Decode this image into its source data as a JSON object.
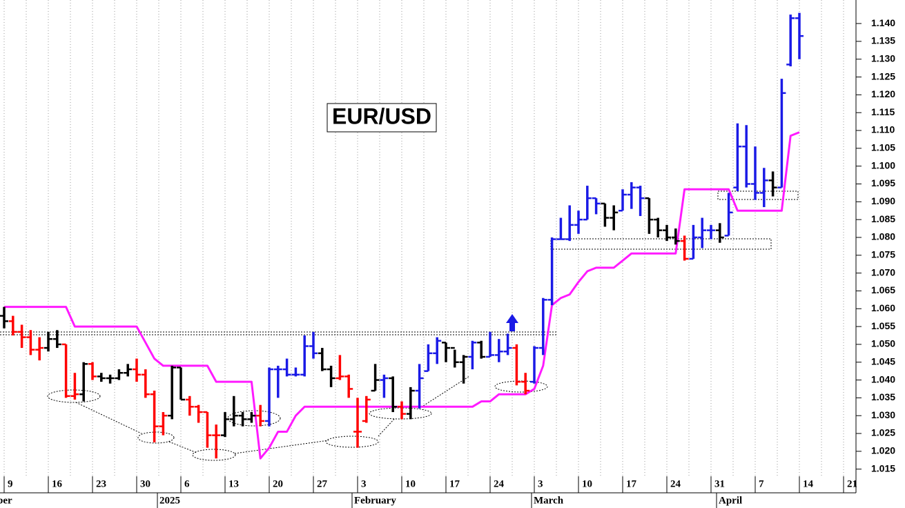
{
  "chart_data": {
    "type": "ohlc",
    "title": "EUR/USD",
    "categories": [
      "9",
      null,
      null,
      null,
      null,
      "16",
      null,
      null,
      null,
      null,
      "23",
      null,
      null,
      null,
      null,
      "30",
      null,
      null,
      null,
      null,
      "6",
      null,
      null,
      null,
      null,
      "13",
      null,
      null,
      null,
      null,
      "20",
      null,
      null,
      null,
      null,
      "27",
      null,
      null,
      null,
      null,
      "3",
      null,
      null,
      null,
      null,
      "10",
      null,
      null,
      null,
      null,
      "17",
      null,
      null,
      null,
      null,
      "24",
      null,
      null,
      null,
      null,
      "3",
      null,
      null,
      null,
      null,
      "10",
      null,
      null,
      null,
      null,
      "17",
      null,
      null,
      null,
      null,
      "24",
      null,
      null,
      null,
      null,
      "31",
      null,
      null,
      null,
      null,
      "7",
      null,
      null,
      null,
      null,
      "14",
      null,
      null,
      null,
      null,
      "21",
      null
    ],
    "months": [
      "ber",
      "2025",
      "February",
      "March",
      "April"
    ],
    "open": [
      1.058,
      1.0565,
      1.0535,
      1.052,
      1.0485,
      1.049,
      1.0515,
      1.05,
      1.0355,
      1.036,
      1.0445,
      1.041,
      1.0405,
      1.0405,
      1.042,
      1.043,
      1.0415,
      1.036,
      1.027,
      1.03,
      1.0435,
      1.0345,
      1.0325,
      1.031,
      1.0245,
      1.0245,
      1.029,
      1.03,
      1.029,
      1.03,
      1.0285,
      1.043,
      1.043,
      1.0415,
      1.0415,
      1.0495,
      1.0475,
      1.043,
      1.0405,
      1.041,
      1.0255,
      1.0285,
      1.037,
      1.04,
      1.0405,
      1.0325,
      1.0305,
      1.037,
      1.0425,
      1.0475,
      1.0505,
      1.049,
      1.045,
      1.0465,
      1.0505,
      1.0465,
      1.047,
      1.048,
      1.049,
      1.0395,
      1.0395,
      1.049,
      1.0625,
      1.0795,
      1.0795,
      1.0835,
      1.085,
      1.091,
      1.0895,
      1.0855,
      1.0875,
      1.092,
      1.094,
      1.091,
      1.085,
      1.082,
      1.08,
      1.079,
      1.074,
      1.08,
      1.082,
      1.082,
      1.0805,
      1.094,
      1.1055,
      1.095,
      1.0925,
      1.096,
      1.094,
      1.1285,
      1.1415,
      null,
      null,
      null,
      null,
      null,
      null
    ],
    "high": [
      1.0605,
      1.058,
      1.0555,
      1.054,
      1.052,
      1.0535,
      1.054,
      1.05,
      1.042,
      1.045,
      1.045,
      1.042,
      1.0415,
      1.043,
      1.0445,
      1.046,
      1.043,
      1.037,
      1.031,
      1.044,
      1.0435,
      1.0355,
      1.033,
      1.031,
      1.0275,
      1.031,
      1.0355,
      1.031,
      1.031,
      1.033,
      1.0435,
      1.044,
      1.046,
      1.0435,
      1.0525,
      1.0535,
      1.049,
      1.044,
      1.047,
      1.0415,
      1.035,
      1.0355,
      1.0445,
      1.0415,
      1.041,
      1.034,
      1.038,
      1.0445,
      1.05,
      1.052,
      1.0505,
      1.0485,
      1.047,
      1.051,
      1.051,
      1.0535,
      1.0515,
      1.053,
      1.05,
      1.042,
      1.0495,
      1.063,
      1.08,
      1.0855,
      1.089,
      1.0875,
      1.0945,
      1.091,
      1.0895,
      1.089,
      1.0935,
      1.0955,
      1.0945,
      1.091,
      1.0855,
      1.0835,
      1.0825,
      1.0805,
      1.0835,
      1.0855,
      1.0835,
      1.084,
      1.0925,
      1.112,
      1.1115,
      1.1055,
      1.0995,
      1.0985,
      1.1245,
      1.1425,
      1.143,
      null,
      null,
      null,
      null,
      null,
      null
    ],
    "low": [
      1.0545,
      1.0525,
      1.049,
      1.047,
      1.0455,
      1.048,
      1.049,
      1.035,
      1.0345,
      1.034,
      1.04,
      1.0395,
      1.039,
      1.04,
      1.041,
      1.0395,
      1.035,
      1.0225,
      1.0245,
      1.029,
      1.0345,
      1.03,
      1.028,
      1.021,
      1.018,
      1.024,
      1.027,
      1.027,
      1.028,
      1.027,
      1.027,
      1.035,
      1.041,
      1.041,
      1.041,
      1.046,
      1.0425,
      1.038,
      1.04,
      1.035,
      1.021,
      1.028,
      1.037,
      1.035,
      1.031,
      1.029,
      1.029,
      1.032,
      1.0425,
      1.0445,
      1.045,
      1.0435,
      1.039,
      1.043,
      1.046,
      1.0465,
      1.045,
      1.047,
      1.0385,
      1.036,
      1.039,
      1.047,
      1.061,
      1.0795,
      1.079,
      1.081,
      1.085,
      1.0865,
      1.083,
      1.082,
      1.0875,
      1.088,
      1.086,
      1.081,
      1.08,
      1.079,
      1.078,
      1.0735,
      1.074,
      1.077,
      1.0795,
      1.0785,
      1.0805,
      1.093,
      1.094,
      1.0905,
      1.0885,
      1.0915,
      1.094,
      1.128,
      1.13,
      null,
      null,
      null,
      null,
      null,
      null
    ],
    "close": [
      1.0565,
      1.0535,
      1.052,
      1.0485,
      1.049,
      1.0515,
      1.05,
      1.0355,
      1.036,
      1.0445,
      1.041,
      1.0405,
      1.0405,
      1.042,
      1.043,
      1.0415,
      1.036,
      1.027,
      1.03,
      1.0435,
      1.0345,
      1.0325,
      1.031,
      1.0245,
      1.0245,
      1.029,
      1.03,
      1.029,
      1.03,
      1.0285,
      1.043,
      1.043,
      1.0415,
      1.0415,
      1.0495,
      1.0475,
      1.043,
      1.0405,
      1.041,
      1.0375,
      1.0255,
      1.0345,
      1.04,
      1.0405,
      1.0325,
      1.0305,
      1.037,
      1.0405,
      1.0475,
      1.051,
      1.049,
      1.045,
      1.0465,
      1.0505,
      1.0465,
      1.047,
      1.048,
      1.049,
      1.0395,
      1.037,
      1.049,
      1.0625,
      1.0795,
      1.0795,
      1.0835,
      1.085,
      1.091,
      1.0895,
      1.0855,
      1.087,
      1.092,
      1.094,
      1.091,
      1.085,
      1.082,
      1.08,
      1.079,
      1.074,
      1.08,
      1.082,
      1.082,
      1.08,
      1.087,
      1.1055,
      1.095,
      1.0925,
      1.096,
      1.094,
      1.1205,
      1.1415,
      1.1365,
      null,
      null,
      null,
      null,
      null,
      null
    ],
    "bar_colors": [
      "#000000",
      "#ff0000",
      "#ff0000",
      "#ff0000",
      "#ff0000",
      "#000000",
      "#000000",
      "#ff0000",
      "#ff0000",
      "#000000",
      "#ff0000",
      "#000000",
      "#000000",
      "#000000",
      "#000000",
      "#ff0000",
      "#ff0000",
      "#ff0000",
      "#ff0000",
      "#000000",
      "#000000",
      "#ff0000",
      "#ff0000",
      "#ff0000",
      "#ff0000",
      "#000000",
      "#000000",
      "#000000",
      "#000000",
      "#ff0000",
      "#1a1ae6",
      "#1a1ae6",
      "#1a1ae6",
      "#1a1ae6",
      "#1a1ae6",
      "#1a1ae6",
      "#000000",
      "#000000",
      "#ff0000",
      "#ff0000",
      "#ff0000",
      "#ff0000",
      "#000000",
      "#1a1ae6",
      "#000000",
      "#ff0000",
      "#000000",
      "#1a1ae6",
      "#1a1ae6",
      "#1a1ae6",
      "#000000",
      "#000000",
      "#000000",
      "#1a1ae6",
      "#000000",
      "#1a1ae6",
      "#1a1ae6",
      "#1a1ae6",
      "#ff0000",
      "#ff0000",
      "#1a1ae6",
      "#1a1ae6",
      "#1a1ae6",
      "#1a1ae6",
      "#1a1ae6",
      "#1a1ae6",
      "#1a1ae6",
      "#1a1ae6",
      "#000000",
      "#000000",
      "#1a1ae6",
      "#1a1ae6",
      "#1a1ae6",
      "#000000",
      "#000000",
      "#000000",
      "#000000",
      "#ff0000",
      "#1a1ae6",
      "#1a1ae6",
      "#1a1ae6",
      "#000000",
      "#1a1ae6",
      "#1a1ae6",
      "#1a1ae6",
      "#1a1ae6",
      "#1a1ae6",
      "#000000",
      "#1a1ae6",
      "#1a1ae6",
      "#1a1ae6",
      null,
      null,
      null,
      null,
      null,
      null
    ],
    "lines": [
      {
        "color": "#ff1aff",
        "values": [
          1.0605,
          1.0605,
          1.0605,
          1.0605,
          1.0605,
          1.0605,
          1.0605,
          1.0605,
          1.055,
          1.055,
          1.055,
          1.055,
          1.055,
          1.055,
          1.055,
          1.055,
          1.0505,
          1.046,
          1.044,
          1.044,
          1.044,
          1.044,
          1.044,
          1.044,
          1.0395,
          1.0395,
          1.0395,
          1.0395,
          1.0395,
          1.018,
          1.021,
          1.0255,
          1.0255,
          1.03,
          1.0325,
          1.0325,
          1.0325,
          1.0325,
          1.0325,
          1.0325,
          1.0325,
          1.0325,
          1.0325,
          1.0325,
          1.0325,
          1.0325,
          1.0325,
          1.0325,
          1.0325,
          1.0325,
          1.0325,
          1.0325,
          1.0325,
          1.0325,
          1.034,
          1.034,
          1.036,
          1.036,
          1.036,
          1.036,
          1.0375,
          1.044,
          1.061,
          1.063,
          1.064,
          1.0675,
          1.0705,
          1.0715,
          1.0715,
          1.0715,
          1.0735,
          1.0755,
          1.0755,
          1.0755,
          1.0755,
          1.0755,
          1.0755,
          1.0935,
          1.0935,
          1.0935,
          1.0935,
          1.0935,
          1.0935,
          1.0875,
          1.0875,
          1.0875,
          1.0875,
          1.0875,
          1.0875,
          1.1085,
          1.1095,
          null,
          null,
          null,
          null,
          null,
          null
        ]
      }
    ],
    "ylim": [
      1.013,
      1.1466
    ],
    "yticks": [
      1.015,
      {
        "value": 1.02,
        "label": "1.020"
      },
      1.025,
      {
        "value": 1.03,
        "label": "1.030"
      },
      1.035,
      {
        "value": 1.04,
        "label": "1.040"
      },
      1.045,
      {
        "value": 1.05,
        "label": "1.050"
      },
      1.055,
      {
        "value": 1.06,
        "label": "1.060"
      },
      1.065,
      {
        "value": 1.07,
        "label": "1.070"
      },
      1.075,
      {
        "value": 1.08,
        "label": "1.080"
      },
      1.085,
      {
        "value": 1.09,
        "label": "1.090"
      },
      1.095,
      {
        "value": 1.1,
        "label": "1.100"
      },
      1.105,
      {
        "value": 1.11,
        "label": "1.110"
      },
      1.115,
      {
        "value": 1.12,
        "label": "1.120"
      },
      1.125,
      {
        "value": 1.13,
        "label": "1.130"
      },
      1.135,
      {
        "value": 1.14,
        "label": "1.140"
      }
    ],
    "grid": true
  }
}
